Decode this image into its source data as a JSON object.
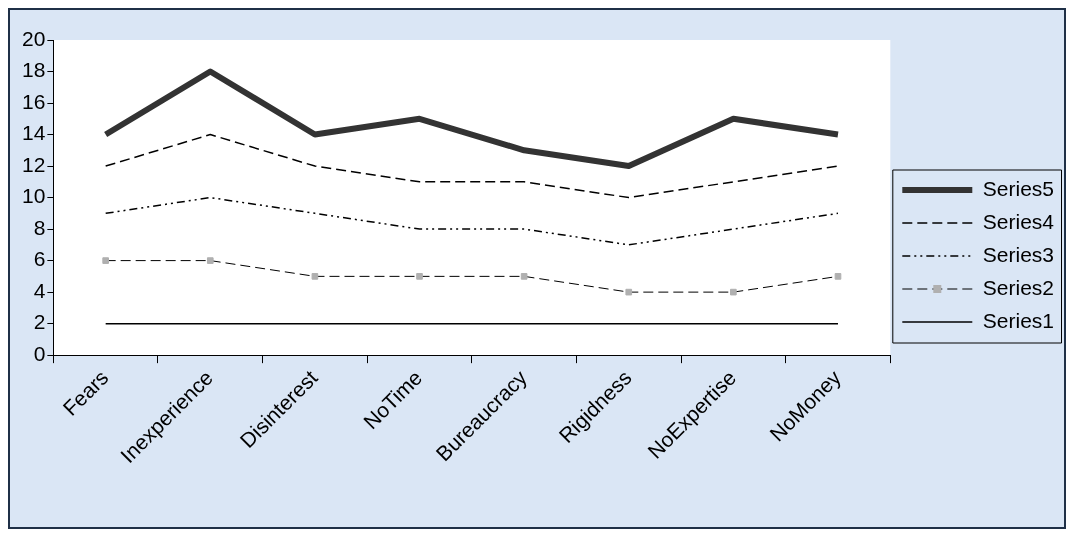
{
  "chart_data": {
    "type": "line",
    "categories": [
      "Fears",
      "Inexperience",
      "Disinterest",
      "NoTime",
      "Bureaucracy",
      "Rigidness",
      "NoExpertise",
      "NoMoney"
    ],
    "series": [
      {
        "name": "Series5",
        "color": "#333333",
        "values": [
          14,
          18,
          14,
          15,
          13,
          12,
          15,
          14
        ]
      },
      {
        "name": "Series4",
        "color": "#000000",
        "line_style": "dashed",
        "values": [
          12,
          14,
          12,
          11,
          11,
          10,
          11,
          12
        ]
      },
      {
        "name": "Series3",
        "color": "#000000",
        "line_style": "dotted",
        "values": [
          9,
          10,
          9,
          8,
          8,
          7,
          8,
          9
        ]
      },
      {
        "name": "Series2",
        "color": "#000000",
        "line_style": "dashed",
        "marker": "square",
        "values": [
          6,
          6,
          5,
          5,
          5,
          4,
          4,
          5
        ]
      },
      {
        "name": "Series1",
        "color": "#000000",
        "values": [
          2,
          2,
          2,
          2,
          2,
          2,
          2,
          2
        ]
      }
    ],
    "ylim": [
      0,
      20
    ],
    "yticks": [
      0,
      2,
      4,
      6,
      8,
      10,
      12,
      14,
      16,
      18,
      20
    ],
    "grid": false,
    "legend": "right",
    "marker": "none",
    "line_style": "solid"
  }
}
